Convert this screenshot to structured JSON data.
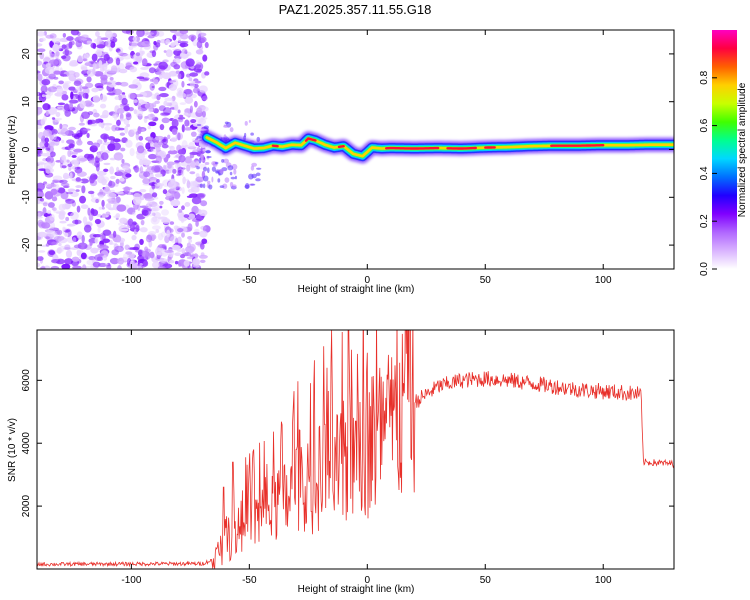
{
  "title": "PAZ1.2025.357.11.55.G18",
  "chart_data": [
    {
      "type": "heatmap",
      "xlabel": "Height of straight line (km)",
      "ylabel": "Frequency (Hz)",
      "xlim": [
        -140,
        130
      ],
      "ylim": [
        -25,
        25
      ],
      "xticks": [
        -100,
        -50,
        0,
        50,
        100
      ],
      "yticks": [
        -20,
        -10,
        0,
        10,
        20
      ],
      "colorbar": {
        "label": "Normalized spectral amplitude",
        "range": [
          0,
          1
        ],
        "ticks": [
          0.0,
          0.2,
          0.4,
          0.6,
          0.8
        ],
        "tick_labels": [
          "0.0",
          "0.2",
          "0.4",
          "0.6",
          "0.8"
        ],
        "colormap": [
          "#ffffff",
          "#d9b3ff",
          "#b066ff",
          "#8000ff",
          "#2000ff",
          "#0070ff",
          "#00d8ff",
          "#00ff90",
          "#40ff00",
          "#c8ff00",
          "#ffd000",
          "#ff6000",
          "#ff0040",
          "#ff00c0"
        ]
      },
      "noise_region_km": [
        -140,
        -68
      ],
      "ridge": [
        [
          -68,
          2.5
        ],
        [
          -64,
          1.5
        ],
        [
          -60,
          0.3
        ],
        [
          -56,
          1.4
        ],
        [
          -52,
          0.8
        ],
        [
          -48,
          0.2
        ],
        [
          -44,
          0.3
        ],
        [
          -40,
          0.8
        ],
        [
          -36,
          0.6
        ],
        [
          -32,
          1.0
        ],
        [
          -28,
          0.9
        ],
        [
          -25,
          2.3
        ],
        [
          -22,
          1.9
        ],
        [
          -18,
          1.0
        ],
        [
          -14,
          0.4
        ],
        [
          -10,
          0.7
        ],
        [
          -6,
          -0.9
        ],
        [
          -2,
          -1.4
        ],
        [
          2,
          0.4
        ],
        [
          6,
          0.2
        ],
        [
          10,
          0.3
        ],
        [
          20,
          0.2
        ],
        [
          30,
          0.3
        ],
        [
          40,
          0.2
        ],
        [
          50,
          0.4
        ],
        [
          60,
          0.5
        ],
        [
          70,
          0.7
        ],
        [
          80,
          0.8
        ],
        [
          90,
          0.8
        ],
        [
          100,
          0.9
        ],
        [
          110,
          0.9
        ],
        [
          120,
          1.0
        ],
        [
          130,
          1.0
        ]
      ]
    },
    {
      "type": "line",
      "xlabel": "Height of straight line (km)",
      "ylabel": "SNR (10 * v/v)",
      "xlim": [
        -140,
        130
      ],
      "ylim": [
        0,
        7600
      ],
      "xticks": [
        -100,
        -50,
        0,
        50,
        100
      ],
      "yticks": [
        2000,
        4000,
        6000
      ],
      "series": [
        {
          "name": "SNR",
          "color": "#e8302a",
          "envelope": [
            [
              -140,
              150
            ],
            [
              -70,
              170
            ],
            [
              -65,
              300
            ],
            [
              -60,
              900
            ],
            [
              -50,
              1500
            ],
            [
              -40,
              1900
            ],
            [
              -30,
              2400
            ],
            [
              -20,
              2900
            ],
            [
              -10,
              3300
            ],
            [
              0,
              3900
            ],
            [
              10,
              4500
            ],
            [
              20,
              5300
            ],
            [
              30,
              5800
            ],
            [
              40,
              6000
            ],
            [
              50,
              6050
            ],
            [
              60,
              6000
            ],
            [
              70,
              5900
            ],
            [
              80,
              5800
            ],
            [
              90,
              5700
            ],
            [
              100,
              5650
            ],
            [
              110,
              5600
            ],
            [
              116,
              5550
            ],
            [
              117,
              3400
            ],
            [
              130,
              3350
            ]
          ],
          "spikes": [
            [
              -8,
              7600
            ],
            [
              -57,
              3400
            ],
            [
              -61,
              2600
            ],
            [
              -30,
              3800
            ],
            [
              -18,
              4600
            ],
            [
              -5,
              4700
            ]
          ]
        }
      ]
    }
  ]
}
